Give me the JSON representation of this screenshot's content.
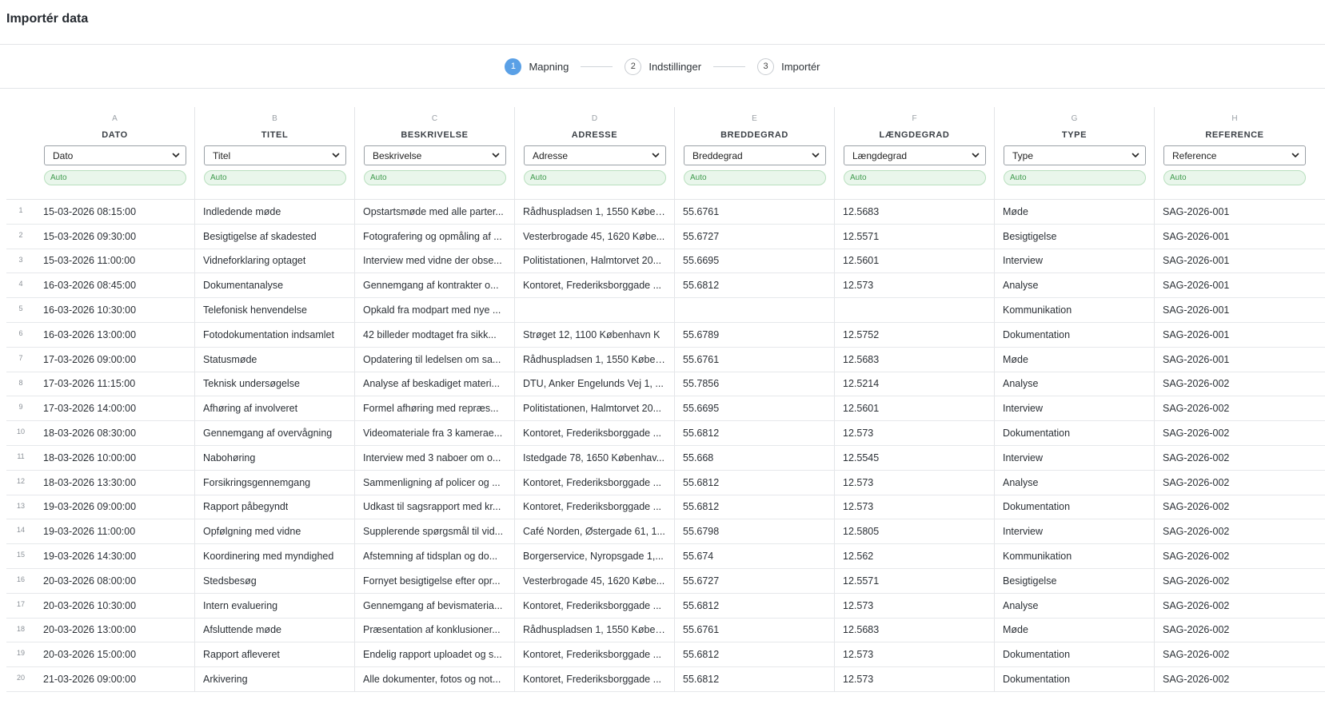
{
  "header": {
    "title": "Importér data"
  },
  "steps": [
    {
      "num": "1",
      "label": "Mapning",
      "active": true
    },
    {
      "num": "2",
      "label": "Indstillinger",
      "active": false
    },
    {
      "num": "3",
      "label": "Importér",
      "active": false
    }
  ],
  "columns": [
    {
      "letter": "A",
      "name": "DATO",
      "mapped": "Dato",
      "badge": "Auto"
    },
    {
      "letter": "B",
      "name": "TITEL",
      "mapped": "Titel",
      "badge": "Auto"
    },
    {
      "letter": "C",
      "name": "BESKRIVELSE",
      "mapped": "Beskrivelse",
      "badge": "Auto"
    },
    {
      "letter": "D",
      "name": "ADRESSE",
      "mapped": "Adresse",
      "badge": "Auto"
    },
    {
      "letter": "E",
      "name": "BREDDEGRAD",
      "mapped": "Breddegrad",
      "badge": "Auto"
    },
    {
      "letter": "F",
      "name": "LÆNGDEGRAD",
      "mapped": "Længdegrad",
      "badge": "Auto"
    },
    {
      "letter": "G",
      "name": "TYPE",
      "mapped": "Type",
      "badge": "Auto"
    },
    {
      "letter": "H",
      "name": "REFERENCE",
      "mapped": "Reference",
      "badge": "Auto"
    }
  ],
  "rows": [
    {
      "n": "1",
      "c": [
        "15-03-2026 08:15:00",
        "Indledende møde",
        "Opstartsmøde med alle parter...",
        "Rådhuspladsen 1, 1550 Køben...",
        "55.6761",
        "12.5683",
        "Møde",
        "SAG-2026-001"
      ]
    },
    {
      "n": "2",
      "c": [
        "15-03-2026 09:30:00",
        "Besigtigelse af skadested",
        "Fotografering og opmåling af ...",
        "Vesterbrogade 45, 1620 Købe...",
        "55.6727",
        "12.5571",
        "Besigtigelse",
        "SAG-2026-001"
      ]
    },
    {
      "n": "3",
      "c": [
        "15-03-2026 11:00:00",
        "Vidneforklaring optaget",
        "Interview med vidne der obse...",
        "Politistationen, Halmtorvet 20...",
        "55.6695",
        "12.5601",
        "Interview",
        "SAG-2026-001"
      ]
    },
    {
      "n": "4",
      "c": [
        "16-03-2026 08:45:00",
        "Dokumentanalyse",
        "Gennemgang af kontrakter o...",
        "Kontoret, Frederiksborggade ...",
        "55.6812",
        "12.573",
        "Analyse",
        "SAG-2026-001"
      ]
    },
    {
      "n": "5",
      "c": [
        "16-03-2026 10:30:00",
        "Telefonisk henvendelse",
        "Opkald fra modpart med nye ...",
        "",
        "",
        "",
        "Kommunikation",
        "SAG-2026-001"
      ]
    },
    {
      "n": "6",
      "c": [
        "16-03-2026 13:00:00",
        "Fotodokumentation indsamlet",
        "42 billeder modtaget fra sikk...",
        "Strøget 12, 1100 København K",
        "55.6789",
        "12.5752",
        "Dokumentation",
        "SAG-2026-001"
      ]
    },
    {
      "n": "7",
      "c": [
        "17-03-2026 09:00:00",
        "Statusmøde",
        "Opdatering til ledelsen om sa...",
        "Rådhuspladsen 1, 1550 Køben...",
        "55.6761",
        "12.5683",
        "Møde",
        "SAG-2026-001"
      ]
    },
    {
      "n": "8",
      "c": [
        "17-03-2026 11:15:00",
        "Teknisk undersøgelse",
        "Analyse af beskadiget materi...",
        "DTU, Anker Engelunds Vej 1, ...",
        "55.7856",
        "12.5214",
        "Analyse",
        "SAG-2026-002"
      ]
    },
    {
      "n": "9",
      "c": [
        "17-03-2026 14:00:00",
        "Afhøring af involveret",
        "Formel afhøring med repræs...",
        "Politistationen, Halmtorvet 20...",
        "55.6695",
        "12.5601",
        "Interview",
        "SAG-2026-002"
      ]
    },
    {
      "n": "10",
      "c": [
        "18-03-2026 08:30:00",
        "Gennemgang af overvågning",
        "Videomateriale fra 3 kamerae...",
        "Kontoret, Frederiksborggade ...",
        "55.6812",
        "12.573",
        "Dokumentation",
        "SAG-2026-002"
      ]
    },
    {
      "n": "11",
      "c": [
        "18-03-2026 10:00:00",
        "Nabohøring",
        "Interview med 3 naboer om o...",
        "Istedgade 78, 1650 Københav...",
        "55.668",
        "12.5545",
        "Interview",
        "SAG-2026-002"
      ]
    },
    {
      "n": "12",
      "c": [
        "18-03-2026 13:30:00",
        "Forsikringsgennemgang",
        "Sammenligning af policer og ...",
        "Kontoret, Frederiksborggade ...",
        "55.6812",
        "12.573",
        "Analyse",
        "SAG-2026-002"
      ]
    },
    {
      "n": "13",
      "c": [
        "19-03-2026 09:00:00",
        "Rapport påbegyndt",
        "Udkast til sagsrapport med kr...",
        "Kontoret, Frederiksborggade ...",
        "55.6812",
        "12.573",
        "Dokumentation",
        "SAG-2026-002"
      ]
    },
    {
      "n": "14",
      "c": [
        "19-03-2026 11:00:00",
        "Opfølgning med vidne",
        "Supplerende spørgsmål til vid...",
        "Café Norden, Østergade 61, 1...",
        "55.6798",
        "12.5805",
        "Interview",
        "SAG-2026-002"
      ]
    },
    {
      "n": "15",
      "c": [
        "19-03-2026 14:30:00",
        "Koordinering med myndighed",
        "Afstemning af tidsplan og do...",
        "Borgerservice, Nyropsgade 1,...",
        "55.674",
        "12.562",
        "Kommunikation",
        "SAG-2026-002"
      ]
    },
    {
      "n": "16",
      "c": [
        "20-03-2026 08:00:00",
        "Stedsbesøg",
        "Fornyet besigtigelse efter opr...",
        "Vesterbrogade 45, 1620 Købe...",
        "55.6727",
        "12.5571",
        "Besigtigelse",
        "SAG-2026-002"
      ]
    },
    {
      "n": "17",
      "c": [
        "20-03-2026 10:30:00",
        "Intern evaluering",
        "Gennemgang af bevismateria...",
        "Kontoret, Frederiksborggade ...",
        "55.6812",
        "12.573",
        "Analyse",
        "SAG-2026-002"
      ]
    },
    {
      "n": "18",
      "c": [
        "20-03-2026 13:00:00",
        "Afsluttende møde",
        "Præsentation af konklusioner...",
        "Rådhuspladsen 1, 1550 Køben...",
        "55.6761",
        "12.5683",
        "Møde",
        "SAG-2026-002"
      ]
    },
    {
      "n": "19",
      "c": [
        "20-03-2026 15:00:00",
        "Rapport afleveret",
        "Endelig rapport uploadet og s...",
        "Kontoret, Frederiksborggade ...",
        "55.6812",
        "12.573",
        "Dokumentation",
        "SAG-2026-002"
      ]
    },
    {
      "n": "20",
      "c": [
        "21-03-2026 09:00:00",
        "Arkivering",
        "Alle dokumenter, fotos og not...",
        "Kontoret, Frederiksborggade ...",
        "55.6812",
        "12.573",
        "Dokumentation",
        "SAG-2026-002"
      ]
    }
  ],
  "colors": {
    "accent": "#5aa0e6",
    "auto_badge_bg": "#e9f6eb",
    "auto_badge_text": "#3f9b4d"
  }
}
